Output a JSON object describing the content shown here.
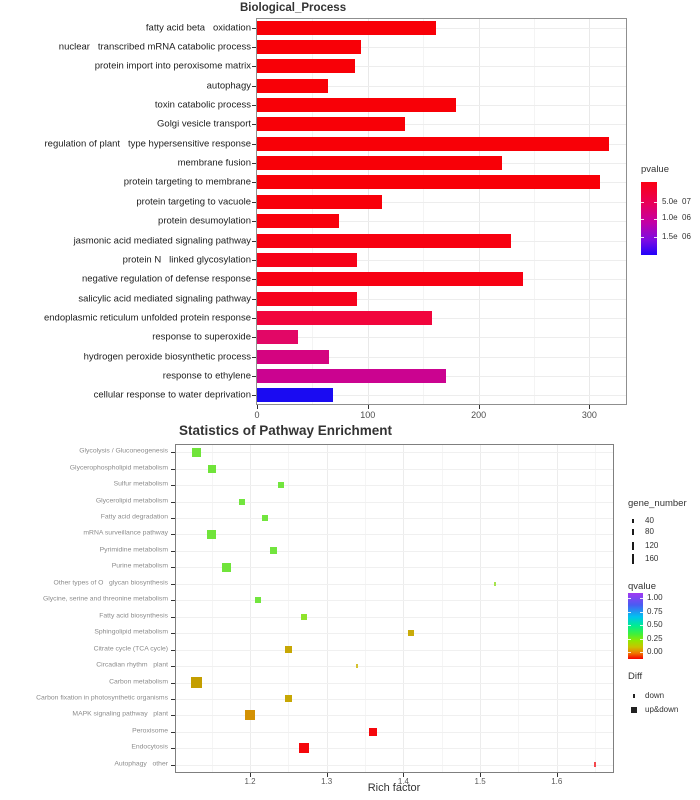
{
  "chart_data": [
    {
      "type": "bar",
      "title": "Biological_Process",
      "orientation": "horizontal",
      "xlabel": "",
      "x_ticks": [
        0,
        100,
        200,
        300
      ],
      "xlim": [
        0,
        334
      ],
      "grid": true,
      "legend": {
        "title": "pvalue",
        "position": "right",
        "tick_labels": [
          "5.0e  07",
          "1.0e  06",
          "1.5e  06"
        ],
        "gradient": [
          "#FB0013 0%",
          "#E7005C 30%",
          "#C400A4 55%",
          "#7B0BE3 80%",
          "#2102FA 100%"
        ]
      },
      "rows": [
        {
          "label": "fatty acid beta   oxidation",
          "value": 162,
          "color": "#F80007"
        },
        {
          "label": "nuclear   transcribed mRNA catabolic process",
          "value": 94,
          "color": "#F80007"
        },
        {
          "label": "protein import into peroxisome matrix",
          "value": 88,
          "color": "#F80007"
        },
        {
          "label": "autophagy",
          "value": 64,
          "color": "#F80007"
        },
        {
          "label": "toxin catabolic process",
          "value": 180,
          "color": "#F80007"
        },
        {
          "label": "Golgi vesicle transport",
          "value": 134,
          "color": "#F80007"
        },
        {
          "label": "regulation of plant   type hypersensitive response",
          "value": 318,
          "color": "#F80007"
        },
        {
          "label": "membrane fusion",
          "value": 221,
          "color": "#F80007"
        },
        {
          "label": "protein targeting to membrane",
          "value": 310,
          "color": "#F80007"
        },
        {
          "label": "protein targeting to vacuole",
          "value": 113,
          "color": "#F80009"
        },
        {
          "label": "protein desumoylation",
          "value": 74,
          "color": "#F8010C"
        },
        {
          "label": "jasmonic acid mediated signaling pathway",
          "value": 229,
          "color": "#F70110"
        },
        {
          "label": "protein N   linked glycosylation",
          "value": 90,
          "color": "#F60218"
        },
        {
          "label": "negative regulation of defense response",
          "value": 240,
          "color": "#F70113"
        },
        {
          "label": "salicylic acid mediated signaling pathway",
          "value": 90,
          "color": "#F6031D"
        },
        {
          "label": "endoplasmic reticulum unfolded protein response",
          "value": 158,
          "color": "#F1053C"
        },
        {
          "label": "response to superoxide",
          "value": 37,
          "color": "#E20766"
        },
        {
          "label": "hydrogen peroxide biosynthetic process",
          "value": 65,
          "color": "#D40480"
        },
        {
          "label": "response to ethylene",
          "value": 171,
          "color": "#CB0390"
        },
        {
          "label": "cellular response to water deprivation",
          "value": 69,
          "color": "#1A0BF2"
        }
      ]
    },
    {
      "type": "scatter",
      "title": "Statistics of Pathway Enrichment",
      "xlabel": "Rich factor",
      "x_ticks": [
        1.2,
        1.3,
        1.4,
        1.5,
        1.6
      ],
      "xlim": [
        1.1,
        1.67
      ],
      "grid": true,
      "legend_gene_number": {
        "title": "gene_number",
        "items": [
          "40",
          "80",
          "120",
          "160"
        ]
      },
      "legend_qvalue": {
        "title": "qvalue",
        "tick_labels": [
          "1.00",
          "0.75",
          "0.50",
          "0.25",
          "0.00"
        ],
        "gradient": [
          "#A238F2 0%",
          "#4A5BF2 18%",
          "#00C2F0 36%",
          "#00EE8E 50%",
          "#3FF03C 62%",
          "#90E800 72%",
          "#C8C400 82%",
          "#F07800 91%",
          "#F50000 100%"
        ]
      },
      "legend_diff": {
        "title": "Diff",
        "items": [
          {
            "label": "down",
            "marker": "dash"
          },
          {
            "label": "up&down",
            "marker": "square"
          }
        ]
      },
      "rows": [
        {
          "label": "Glycolysis / Gluconeogenesis",
          "x": 1.13,
          "size": 9,
          "color": "#70E43A",
          "shape": "square"
        },
        {
          "label": "Glycerophospholipid metabolism",
          "x": 1.15,
          "size": 8,
          "color": "#70E43A",
          "shape": "square"
        },
        {
          "label": "Sulfur metabolism",
          "x": 1.24,
          "size": 6,
          "color": "#72E53E",
          "shape": "square"
        },
        {
          "label": "Glycerolipid metabolism",
          "x": 1.19,
          "size": 6,
          "color": "#72E53E",
          "shape": "square"
        },
        {
          "label": "Fatty acid degradation",
          "x": 1.22,
          "size": 6,
          "color": "#72E53E",
          "shape": "square"
        },
        {
          "label": "mRNA surveillance pathway",
          "x": 1.15,
          "size": 9,
          "color": "#70E43A",
          "shape": "square"
        },
        {
          "label": "Pyrimidine metabolism",
          "x": 1.23,
          "size": 7,
          "color": "#72E53E",
          "shape": "square"
        },
        {
          "label": "Purine metabolism",
          "x": 1.17,
          "size": 9,
          "color": "#70E43A",
          "shape": "square"
        },
        {
          "label": "Other types of O   glycan biosynthesis",
          "x": 1.52,
          "size": 4,
          "color": "#A6E34E",
          "shape": "dash"
        },
        {
          "label": "Glycine, serine and threonine metabolism",
          "x": 1.21,
          "size": 6,
          "color": "#72E53E",
          "shape": "square"
        },
        {
          "label": "Fatty acid biosynthesis",
          "x": 1.27,
          "size": 6,
          "color": "#8FE32B",
          "shape": "square"
        },
        {
          "label": "Sphingolipid metabolism",
          "x": 1.41,
          "size": 6,
          "color": "#C9AB0A",
          "shape": "square"
        },
        {
          "label": "Citrate cycle (TCA cycle)",
          "x": 1.25,
          "size": 7,
          "color": "#C7A704",
          "shape": "square"
        },
        {
          "label": "Circadian rhythm   plant",
          "x": 1.34,
          "size": 4,
          "color": "#D4C12F",
          "shape": "dash"
        },
        {
          "label": "Carbon metabolism",
          "x": 1.13,
          "size": 11,
          "color": "#C49E00",
          "shape": "square"
        },
        {
          "label": "Carbon fixation in photosynthetic organisms",
          "x": 1.25,
          "size": 7,
          "color": "#C7A704",
          "shape": "square"
        },
        {
          "label": "MAPK signaling pathway   plant",
          "x": 1.2,
          "size": 10,
          "color": "#D39104",
          "shape": "square"
        },
        {
          "label": "Peroxisome",
          "x": 1.36,
          "size": 8,
          "color": "#F5070C",
          "shape": "square"
        },
        {
          "label": "Endocytosis",
          "x": 1.27,
          "size": 10,
          "color": "#F5070C",
          "shape": "square"
        },
        {
          "label": "Autophagy   other",
          "x": 1.65,
          "size": 5,
          "color": "#F4484D",
          "shape": "dash"
        }
      ]
    }
  ]
}
